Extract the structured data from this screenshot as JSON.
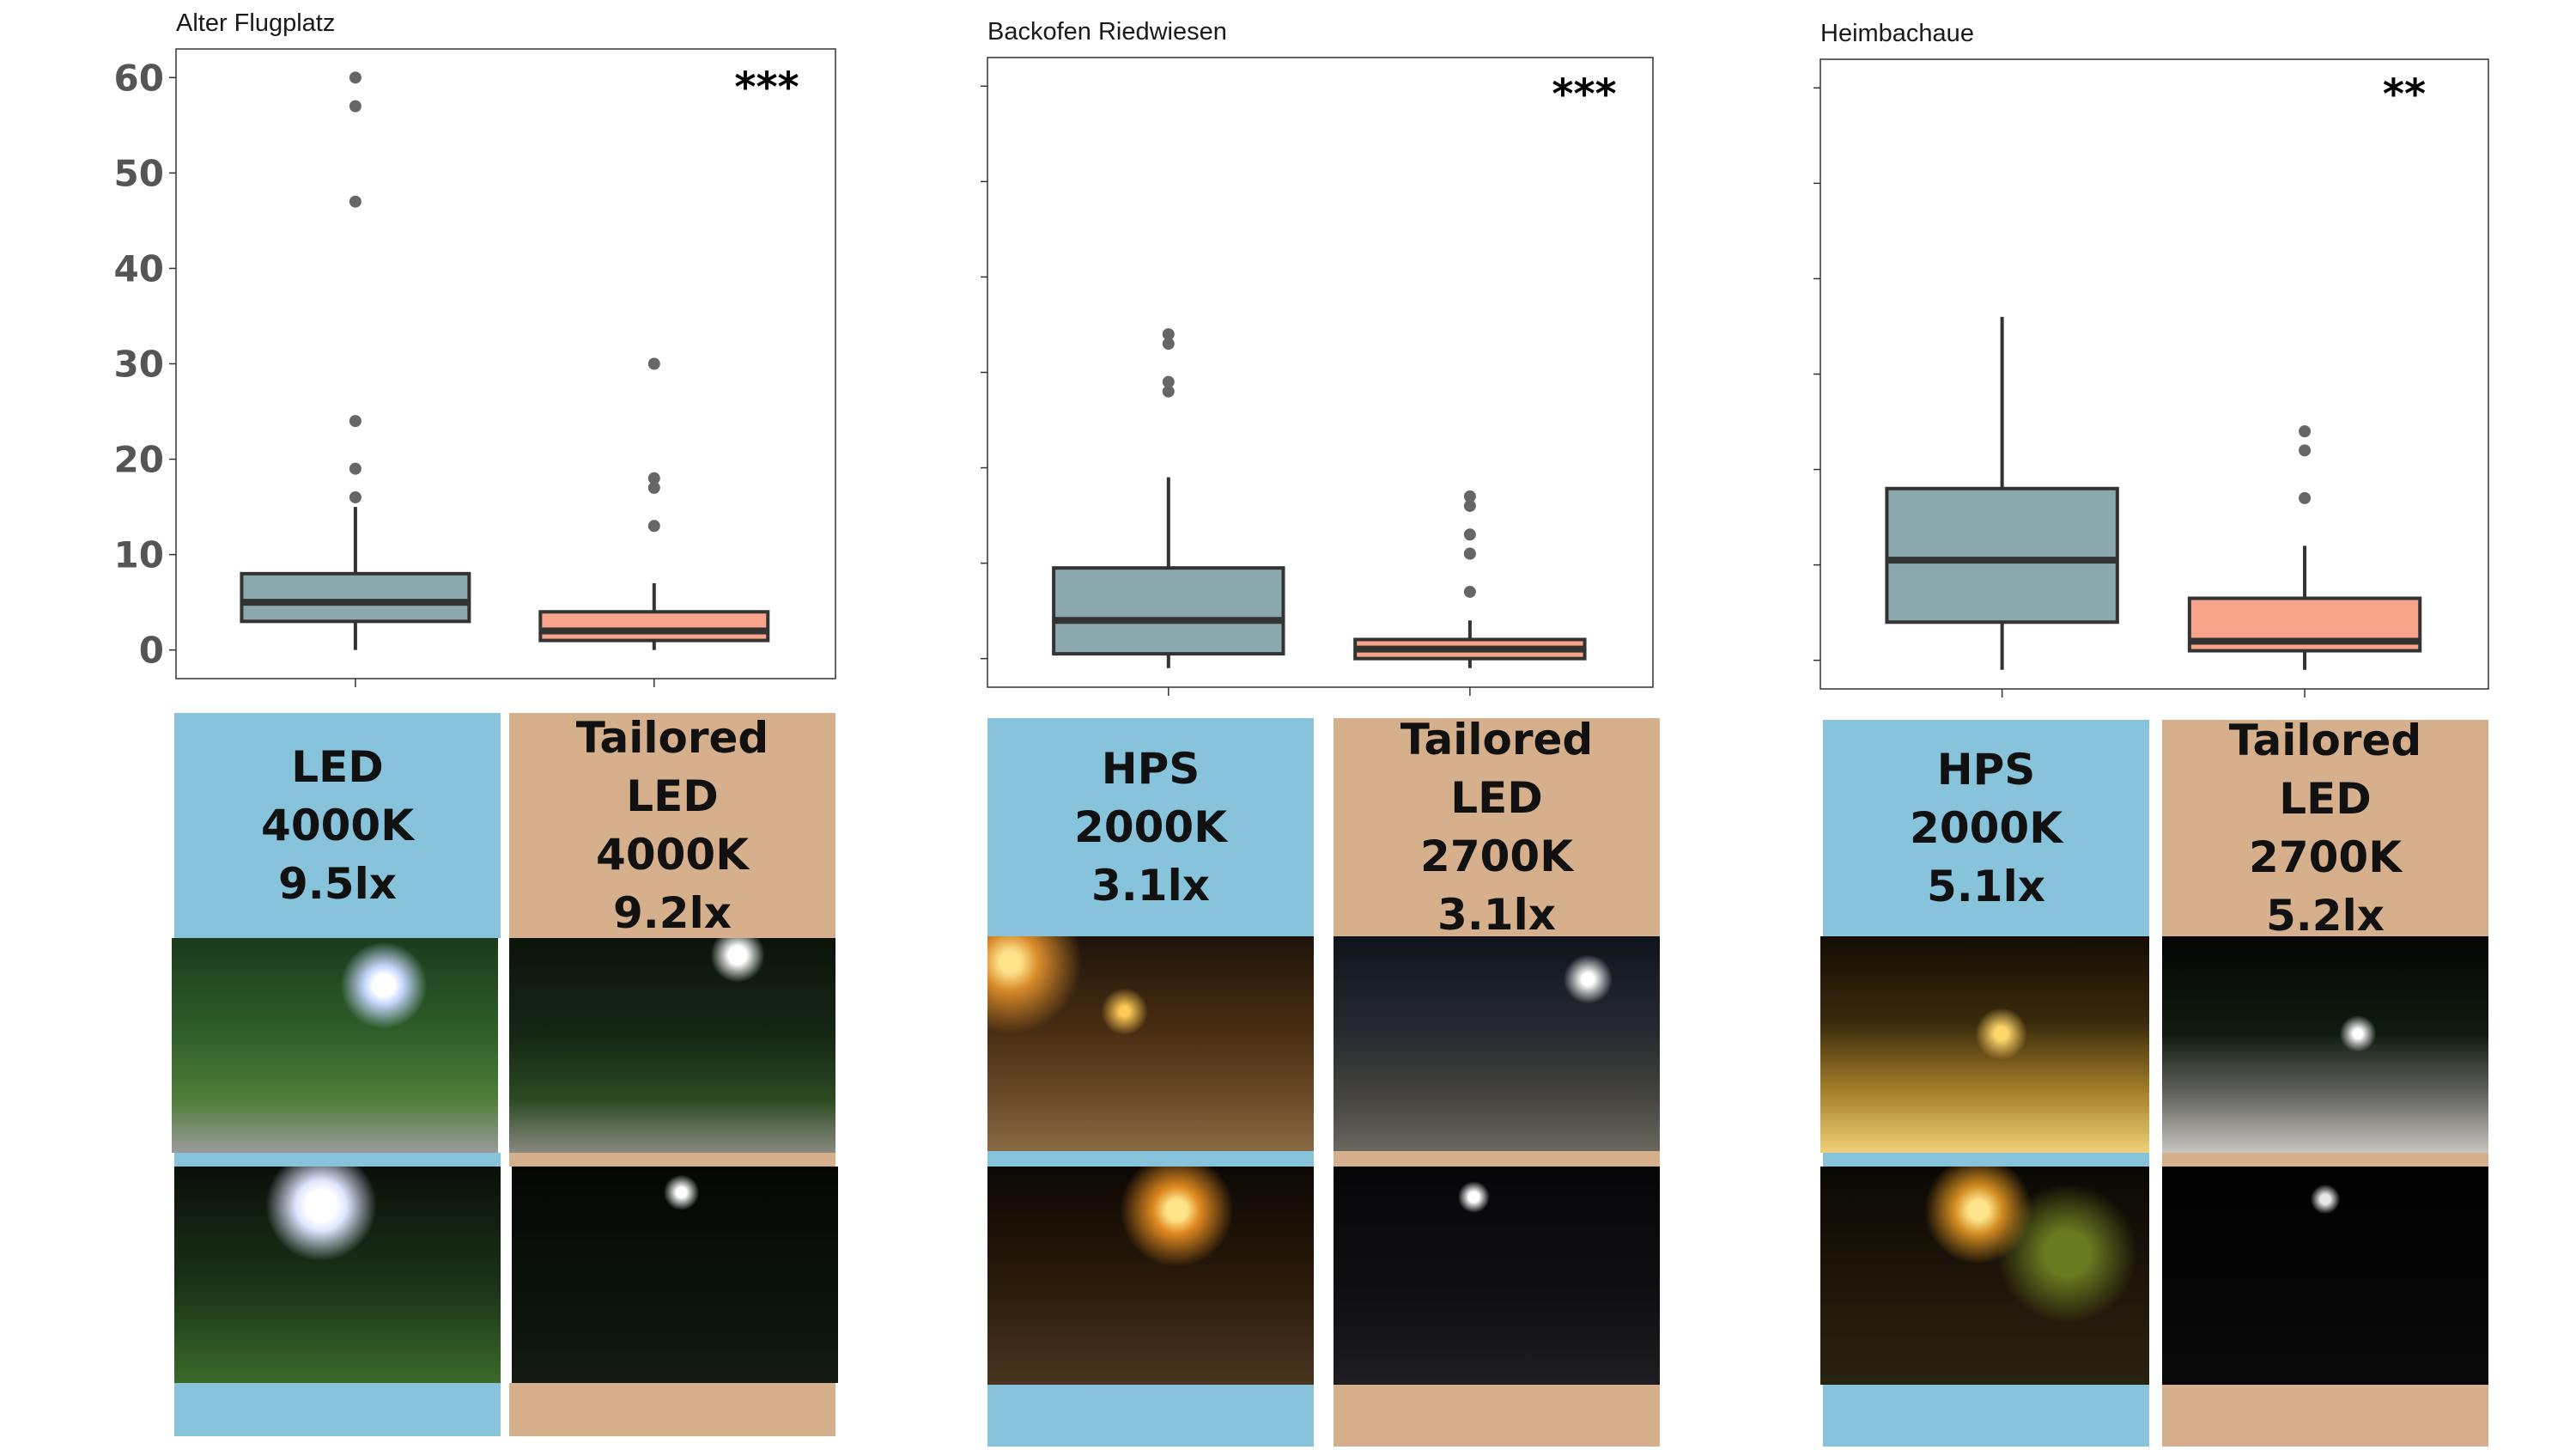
{
  "colors": {
    "ref": "#8aa8ad",
    "tailored": "#f8a48a",
    "blue_strip": "#88c3dc",
    "tan_strip": "#d6b08c"
  },
  "chart_data": [
    {
      "type": "box",
      "title": "Alter Flugplatz",
      "ylim": [
        -3,
        63
      ],
      "yticks": [
        0,
        10,
        20,
        30,
        40,
        50,
        60
      ],
      "ytick_labels_shown": true,
      "significance": "***",
      "groups": [
        {
          "label": "LED 4000K 9.5lx",
          "whisker_low": 0,
          "q1": 3,
          "median": 5,
          "q3": 8,
          "whisker_high": 15,
          "outliers": [
            16,
            19,
            24,
            47,
            57,
            60
          ]
        },
        {
          "label": "Tailored LED 4000K 9.2lx",
          "whisker_low": 0,
          "q1": 1,
          "median": 2,
          "q3": 4,
          "whisker_high": 7,
          "outliers": [
            13,
            17,
            18,
            30
          ]
        }
      ]
    },
    {
      "type": "box",
      "title": "Backofen Riedwiesen",
      "ylim": [
        -3,
        63
      ],
      "yticks": [
        0,
        10,
        20,
        30,
        40,
        50,
        60
      ],
      "ytick_labels_shown": false,
      "significance": "***",
      "groups": [
        {
          "label": "HPS 2000K 3.1lx",
          "whisker_low": -1,
          "q1": 0.5,
          "median": 4,
          "q3": 9.5,
          "whisker_high": 19,
          "outliers": [
            28,
            29,
            33,
            34
          ]
        },
        {
          "label": "Tailored LED 2700K 3.1lx",
          "whisker_low": -1,
          "q1": 0,
          "median": 1,
          "q3": 2,
          "whisker_high": 4,
          "outliers": [
            7,
            11,
            11,
            13,
            16,
            17
          ]
        }
      ]
    },
    {
      "type": "box",
      "title": "Heimbachaue",
      "ylim": [
        -3,
        63
      ],
      "yticks": [
        0,
        10,
        20,
        30,
        40,
        50,
        60
      ],
      "ytick_labels_shown": false,
      "significance": "**",
      "groups": [
        {
          "label": "HPS 2000K 5.1lx",
          "whisker_low": -1,
          "q1": 4,
          "median": 10.5,
          "q3": 18,
          "whisker_high": 36,
          "outliers": []
        },
        {
          "label": "Tailored LED 2700K 5.2lx",
          "whisker_low": -1,
          "q1": 1,
          "median": 2,
          "q3": 6.5,
          "whisker_high": 12,
          "outliers": [
            17,
            22,
            24
          ]
        }
      ]
    }
  ],
  "labels": [
    {
      "text": "LED\n4000K\n9.5lx",
      "kind": "blue"
    },
    {
      "text": "Tailored\nLED\n4000K\n9.2lx",
      "kind": "tan"
    },
    {
      "text": "HPS\n2000K\n3.1lx",
      "kind": "blue"
    },
    {
      "text": "Tailored\nLED\n2700K\n3.1lx",
      "kind": "tan"
    },
    {
      "text": "HPS\n2000K\n5.1lx",
      "kind": "blue"
    },
    {
      "text": "Tailored\nLED\n2700K\n5.2lx",
      "kind": "tan"
    }
  ]
}
